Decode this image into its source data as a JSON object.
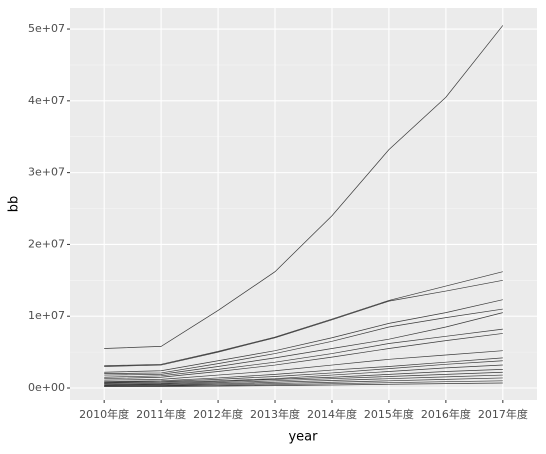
{
  "chart_data": {
    "type": "line",
    "x_label": "year",
    "y_label": "bb",
    "categories": [
      "2010年度",
      "2011年度",
      "2012年度",
      "2013年度",
      "2014年度",
      "2015年度",
      "2016年度",
      "2017年度"
    ],
    "line_color": "#3a3a3a",
    "ylim": [
      -1670000,
      52930000
    ],
    "yticks": [
      {
        "value": 0,
        "label": "0e+00"
      },
      {
        "value": 10000000,
        "label": "1e+07"
      },
      {
        "value": 20000000,
        "label": "2e+07"
      },
      {
        "value": 30000000,
        "label": "3e+07"
      },
      {
        "value": 40000000,
        "label": "4e+07"
      },
      {
        "value": 50000000,
        "label": "5e+07"
      }
    ],
    "grid": true,
    "series": [
      {
        "values": [
          5500000,
          5800000,
          10800000,
          16200000,
          24000000,
          33200000,
          40500000,
          50500000
        ]
      },
      {
        "values": [
          3100000,
          3300000,
          5100000,
          7100000,
          9600000,
          12200000,
          14200000,
          16200000
        ]
      },
      {
        "values": [
          3000000,
          3200000,
          5000000,
          7000000,
          9500000,
          12100000,
          13500000,
          15000000
        ]
      },
      {
        "values": [
          2200000,
          2400000,
          3800000,
          5200000,
          7000000,
          9000000,
          10500000,
          12300000
        ]
      },
      {
        "values": [
          2000000,
          2100000,
          3400000,
          4800000,
          6500000,
          8500000,
          9800000,
          11000000
        ]
      },
      {
        "values": [
          1800000,
          1900000,
          3000000,
          4200000,
          5500000,
          6800000,
          8500000,
          10500000
        ]
      },
      {
        "values": [
          1500000,
          1700000,
          2600000,
          3600000,
          4800000,
          6200000,
          7200000,
          8200000
        ]
      },
      {
        "values": [
          1300000,
          1500000,
          2300000,
          3200000,
          4300000,
          5500000,
          6600000,
          7600000
        ]
      },
      {
        "values": [
          1100000,
          1200000,
          1800000,
          2400000,
          3200000,
          4000000,
          4600000,
          5200000
        ]
      },
      {
        "values": [
          900000,
          1000000,
          1400000,
          1900000,
          2500000,
          3000000,
          3600000,
          4200000
        ]
      },
      {
        "values": [
          800000,
          900000,
          1200000,
          1600000,
          2100000,
          2700000,
          3300000,
          3800000
        ]
      },
      {
        "values": [
          700000,
          800000,
          1000000,
          1300000,
          1800000,
          2300000,
          2800000,
          3200000
        ]
      },
      {
        "values": [
          600000,
          650000,
          900000,
          1200000,
          1500000,
          1900000,
          2300000,
          2600000
        ]
      },
      {
        "values": [
          500000,
          550000,
          750000,
          1000000,
          1300000,
          1600000,
          1900000,
          2200000
        ]
      },
      {
        "values": [
          400000,
          450000,
          600000,
          800000,
          1050000,
          1300000,
          1550000,
          1800000
        ]
      },
      {
        "values": [
          300000,
          350000,
          480000,
          620000,
          800000,
          1000000,
          1200000,
          1400000
        ]
      },
      {
        "values": [
          250000,
          280000,
          360000,
          460000,
          600000,
          740000,
          880000,
          1000000
        ]
      },
      {
        "values": [
          200000,
          210000,
          260000,
          330000,
          420000,
          520000,
          610000,
          700000
        ]
      }
    ]
  }
}
